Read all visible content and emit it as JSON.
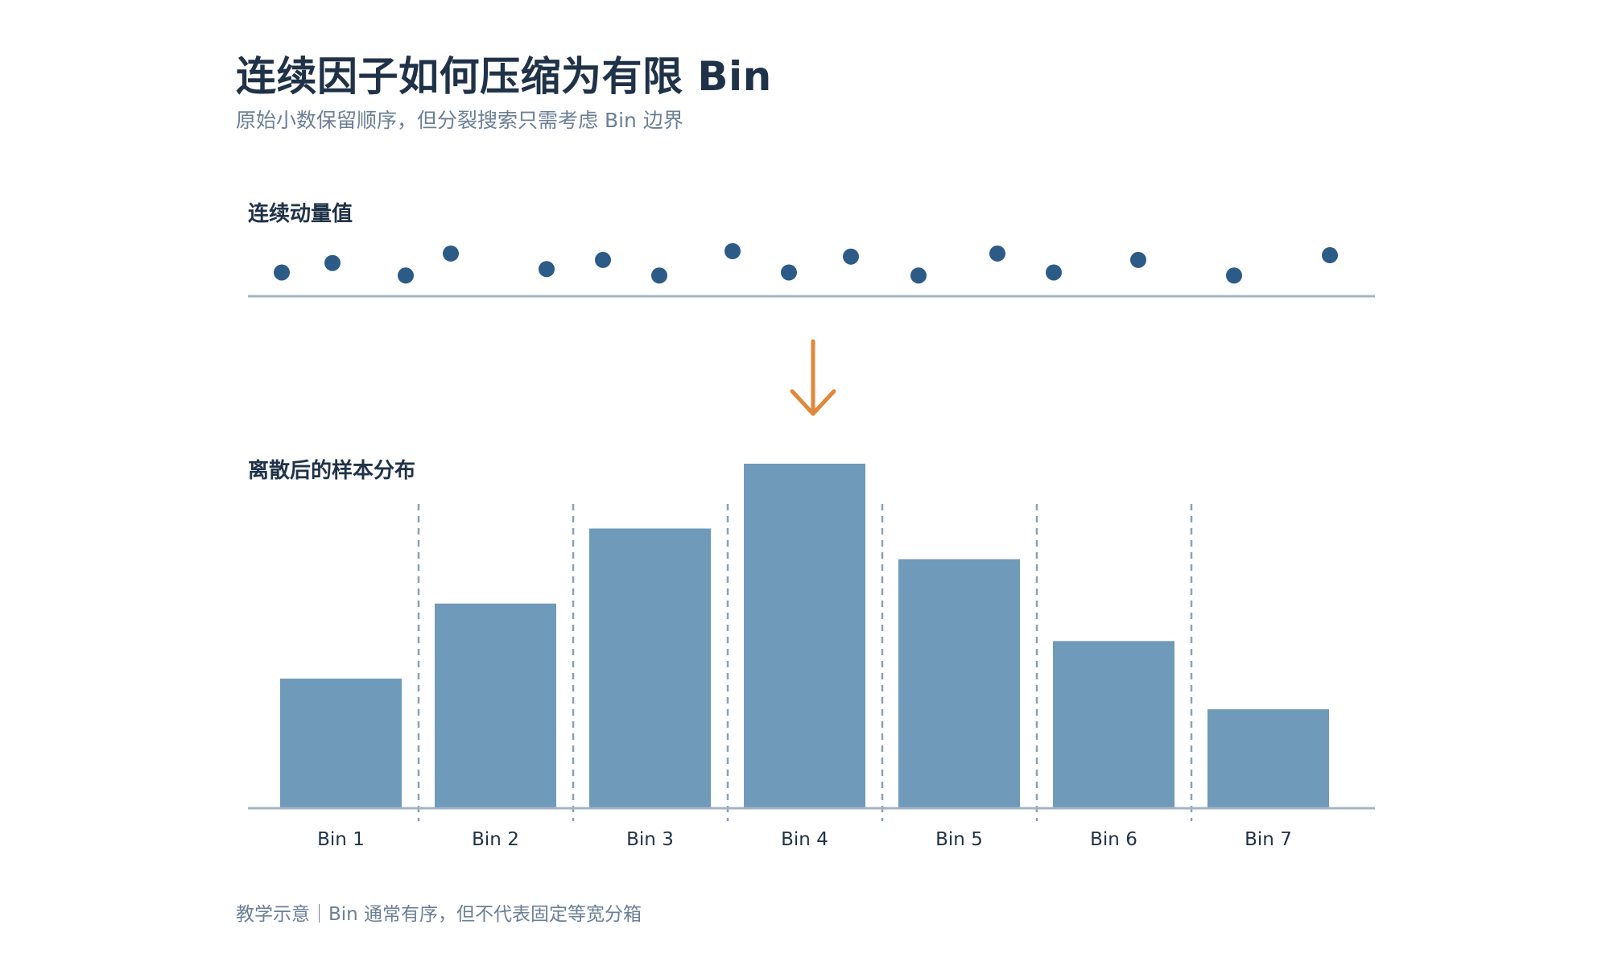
{
  "title": "连续因子如何压缩为有限 Bin",
  "subtitle": "原始小数保留顺序，但分裂搜索只需考虑 Bin 边界",
  "top_section_label": "连续动量值",
  "bottom_section_label": "离散后的样本分布",
  "footer": "教学示意｜Bin 通常有序，但不代表固定等宽分箱",
  "colors": {
    "dot": "#2d5b87",
    "bar": "#6f9aba",
    "axis": "#a3b3c6",
    "divider": "#8aa0b8",
    "arrow": "#e0893a",
    "title": "#1f3248",
    "muted": "#6b7f96"
  },
  "chart_data": [
    {
      "type": "scatter",
      "title": "连续动量值",
      "note": "relative positions of continuous values along a line (no axis ticks shown)",
      "x": [
        0.03,
        0.075,
        0.14,
        0.18,
        0.265,
        0.315,
        0.365,
        0.43,
        0.48,
        0.535,
        0.595,
        0.665,
        0.715,
        0.79,
        0.875,
        0.96
      ],
      "y": [
        0.37,
        0.65,
        0.28,
        0.93,
        0.47,
        0.74,
        0.28,
        1.0,
        0.37,
        0.84,
        0.28,
        0.93,
        0.37,
        0.74,
        0.28,
        0.88
      ]
    },
    {
      "type": "bar",
      "title": "离散后的样本分布",
      "categories": [
        "Bin 1",
        "Bin 2",
        "Bin 3",
        "Bin 4",
        "Bin 5",
        "Bin 6",
        "Bin 7"
      ],
      "values": [
        38,
        60,
        82,
        101,
        73,
        49,
        29
      ],
      "ylim": [
        0,
        101
      ],
      "xlabel": "",
      "ylabel": ""
    }
  ]
}
